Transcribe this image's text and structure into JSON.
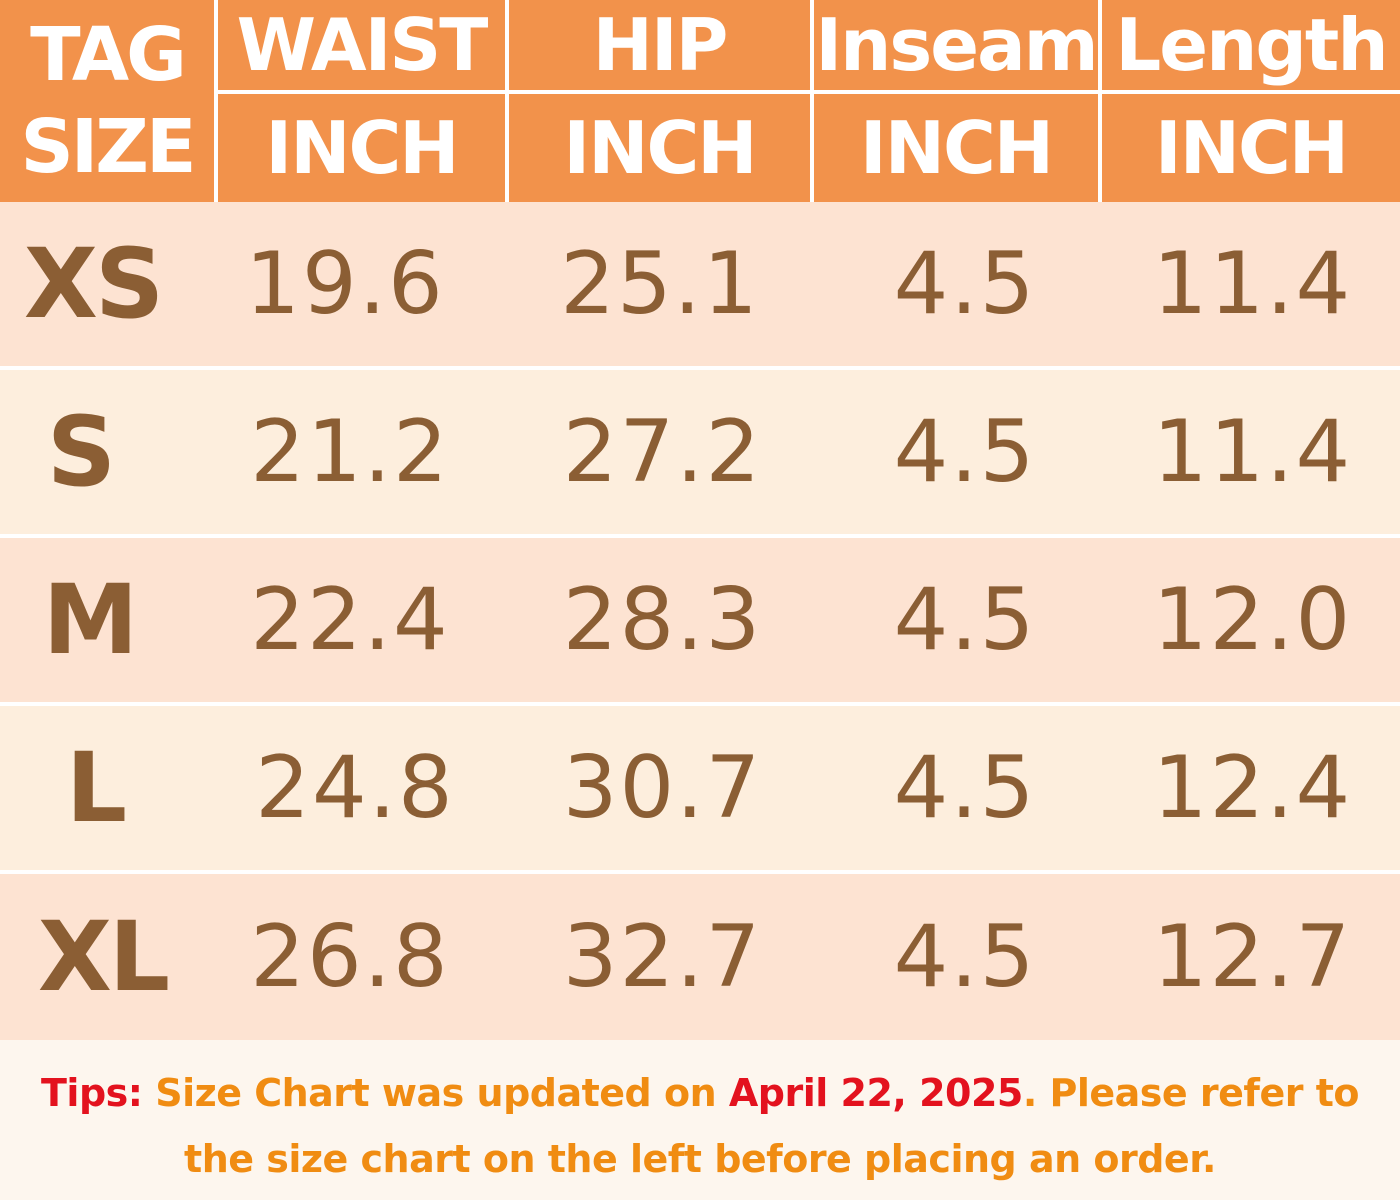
{
  "colors": {
    "header_bg": "#f2924b",
    "row_pink": "#fde3d2",
    "row_cream": "#fdeedd",
    "value_text": "#8b5e34",
    "tip_orange": "#f08c12",
    "tip_red": "#e3121e"
  },
  "chart_data": {
    "type": "table",
    "headers": [
      {
        "top": "TAG",
        "bottom": "SIZE"
      },
      {
        "top": "WAIST",
        "bottom": "INCH"
      },
      {
        "top": "HIP",
        "bottom": "INCH"
      },
      {
        "top": "Inseam",
        "bottom": "INCH"
      },
      {
        "top": "Length",
        "bottom": "INCH"
      }
    ],
    "rows": [
      {
        "size": "XS",
        "waist": "19.6",
        "hip": "25.1",
        "inseam": "4.5",
        "length": "11.4"
      },
      {
        "size": "S",
        "waist": "21.2",
        "hip": "27.2",
        "inseam": "4.5",
        "length": "11.4"
      },
      {
        "size": "M",
        "waist": "22.4",
        "hip": "28.3",
        "inseam": "4.5",
        "length": "12.0"
      },
      {
        "size": "L",
        "waist": "24.8",
        "hip": "30.7",
        "inseam": "4.5",
        "length": "12.4"
      },
      {
        "size": "XL",
        "waist": "26.8",
        "hip": "32.7",
        "inseam": "4.5",
        "length": "12.7"
      }
    ]
  },
  "tips": {
    "label": "Tips:",
    "text1": " Size Chart was updated on ",
    "date": "April 22, 2025",
    "text2": ". Please refer to the size chart on the left before placing an order."
  }
}
